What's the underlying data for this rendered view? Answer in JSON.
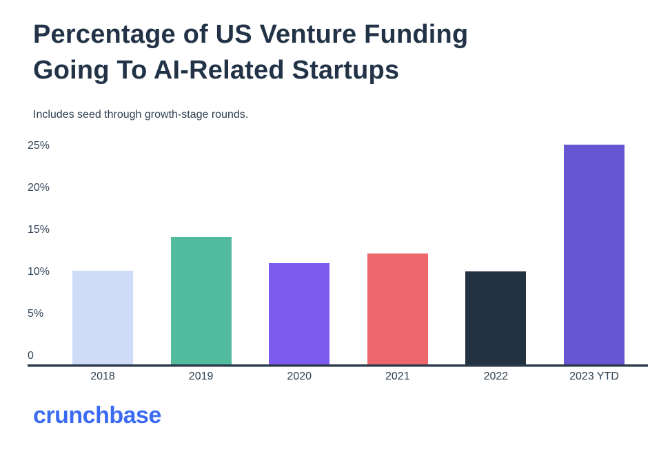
{
  "page": {
    "title_lines": [
      "Percentage of US Venture Funding",
      "Going To AI-Related Startups"
    ],
    "subtitle": "Includes seed through growth-stage rounds.",
    "logo_text": "crunchbase"
  },
  "colors": {
    "title": "#233347",
    "subtitle": "#2e3f50",
    "axis_label": "#33465a",
    "axis_line": "#2b3a49",
    "logo_blue": "#3b6bf2",
    "background": "#ffffff"
  },
  "chart_data": {
    "type": "bar",
    "title": "Percentage of US Venture Funding Going To AI-Related Startups",
    "subtitle": "Includes seed through growth-stage rounds.",
    "categories": [
      "2018",
      "2019",
      "2020",
      "2021",
      "2022",
      "2023 YTD"
    ],
    "values": [
      10.2,
      14.2,
      11.1,
      12.2,
      10.1,
      25.2
    ],
    "unit": "%",
    "bar_colors": [
      "#cfdcf8",
      "#52bb9e",
      "#7e5bf0",
      "#ec686c",
      "#233240",
      "#6756d2"
    ],
    "xlabel": "",
    "ylabel": "",
    "ylim": [
      0,
      25
    ],
    "yticks": [
      0,
      5,
      10,
      15,
      20,
      25
    ],
    "ytick_labels": [
      "0",
      "5%",
      "10%",
      "15%",
      "20%",
      "25%"
    ],
    "grid": false,
    "legend": false,
    "source_brand": "crunchbase"
  }
}
